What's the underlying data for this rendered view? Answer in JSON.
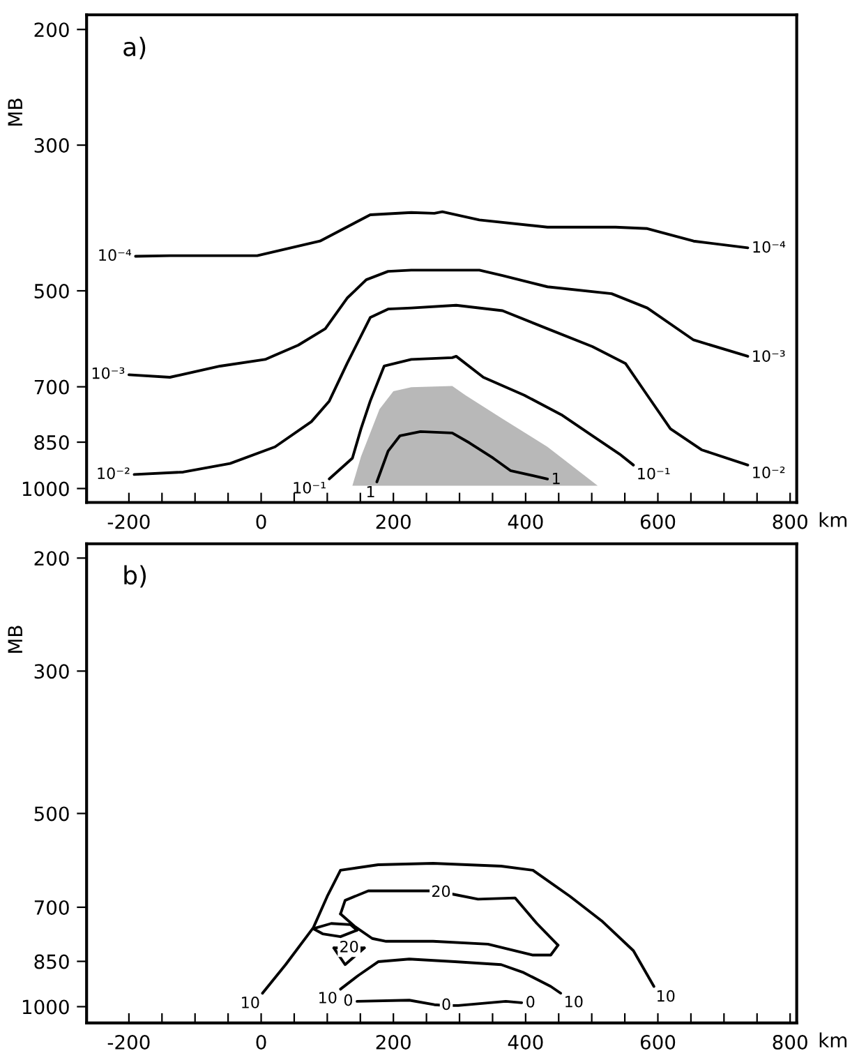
{
  "chart_data": [
    {
      "type": "line",
      "ylabel": "MB",
      "xlabel": "km",
      "log": "y",
      "xlim": [
        -264,
        810
      ],
      "ylim": [
        1050,
        190
      ],
      "yticks": [
        200,
        300,
        500,
        700,
        850,
        1000
      ],
      "xticks": [
        -200,
        {
          "value": -150,
          "label": null
        },
        {
          "value": -100,
          "label": null
        },
        {
          "value": -50,
          "label": null
        },
        0,
        {
          "value": 50,
          "label": null
        },
        {
          "value": 100,
          "label": null
        },
        {
          "value": 150,
          "label": null
        },
        200,
        {
          "value": 250,
          "label": null
        },
        {
          "value": 300,
          "label": null
        },
        {
          "value": 350,
          "label": null
        },
        400,
        {
          "value": 450,
          "label": null
        },
        {
          "value": 500,
          "label": null
        },
        {
          "value": 550,
          "label": null
        },
        600,
        {
          "value": 650,
          "label": null
        },
        {
          "value": 700,
          "label": null
        },
        {
          "value": 750,
          "label": null
        },
        800
      ],
      "series": [
        {
          "type": "area",
          "color": "#b8b8b8",
          "x": [
            138,
            151,
            179,
            200,
            227,
            289,
            309,
            365,
            433,
            509
          ],
          "values": [
            990,
            894,
            757,
            711,
            701,
            698,
            721,
            783,
            864,
            990
          ]
        },
        {
          "color": "#000000",
          "x": [
            -190,
            -138,
            -6,
            89,
            165,
            227,
            262,
            274,
            330,
            433,
            536,
            584,
            654,
            736
          ],
          "values": [
            443,
            442,
            442,
            420,
            383,
            380,
            381,
            379,
            390,
            400,
            400,
            402,
            420,
            430
          ]
        },
        {
          "color": "#000000",
          "x": [
            -200,
            -138,
            -62,
            6,
            56,
            97,
            130,
            159,
            192,
            227,
            330,
            365,
            433,
            530,
            584,
            654,
            736
          ],
          "values": [
            671,
            677,
            651,
            636,
            605,
            571,
            513,
            481,
            467,
            465,
            465,
            474,
            493,
            505,
            531,
            594,
            629
          ]
        },
        {
          "color": "#000000",
          "x": [
            -192,
            -118,
            -47,
            21,
            76,
            103,
            130,
            165,
            192,
            227,
            295,
            365,
            433,
            501,
            551,
            584,
            619,
            666,
            736
          ],
          "values": [
            952,
            944,
            916,
            864,
            791,
            736,
            645,
            549,
            533,
            531,
            526,
            536,
            571,
            608,
            645,
            721,
            811,
            873,
            921
          ]
        },
        {
          "color": "#000000",
          "x": [
            103,
            138,
            151,
            165,
            186,
            227,
            289,
            295,
            336,
            398,
            454,
            501,
            542,
            563
          ],
          "values": [
            967,
            899,
            811,
            736,
            651,
            636,
            632,
            629,
            677,
            721,
            772,
            831,
            886,
            921
          ]
        },
        {
          "color": "#000000",
          "x": [
            175,
            192,
            210,
            241,
            289,
            315,
            351,
            377,
            433
          ],
          "values": [
            977,
            877,
            831,
            819,
            823,
            852,
            899,
            939,
            967
          ]
        }
      ],
      "annotations": [
        "a)",
        {
          "text": "10⁻⁴",
          "x": -190,
          "y": 443
        },
        {
          "text": "10⁻⁴",
          "x": 736,
          "y": 430
        },
        {
          "text": "10⁻³",
          "x": -200,
          "y": 671
        },
        {
          "text": "10⁻³",
          "x": 736,
          "y": 629
        },
        {
          "text": "10⁻²",
          "x": -192,
          "y": 952
        },
        {
          "text": "10⁻²",
          "x": 736,
          "y": 921
        },
        {
          "text": "10⁻¹",
          "x": 103,
          "y": 967
        },
        {
          "text": "10⁻¹",
          "x": 563,
          "y": 921
        },
        {
          "text": "1",
          "x": 175,
          "y": 977
        },
        {
          "text": "1",
          "x": 433,
          "y": 967
        }
      ]
    },
    {
      "type": "line",
      "ylabel": "MB",
      "xlabel": "km",
      "log": "y",
      "xlim": [
        -264,
        810
      ],
      "ylim": [
        1060,
        190
      ],
      "yticks": [
        200,
        300,
        500,
        700,
        850,
        1000
      ],
      "xticks": [
        -200,
        {
          "value": -150,
          "label": null
        },
        {
          "value": -100,
          "label": null
        },
        {
          "value": -50,
          "label": null
        },
        0,
        {
          "value": 50,
          "label": null
        },
        {
          "value": 100,
          "label": null
        },
        {
          "value": 150,
          "label": null
        },
        200,
        {
          "value": 250,
          "label": null
        },
        {
          "value": 300,
          "label": null
        },
        {
          "value": 350,
          "label": null
        },
        400,
        {
          "value": 450,
          "label": null
        },
        {
          "value": 500,
          "label": null
        },
        {
          "value": 550,
          "label": null
        },
        600,
        {
          "value": 650,
          "label": null
        },
        {
          "value": 700,
          "label": null
        },
        {
          "value": 750,
          "label": null
        },
        800
      ],
      "series": [
        {
          "color": "#000000",
          "x": [
            2,
            37,
            79,
            100,
            120,
            177,
            260,
            363,
            411,
            467,
            515,
            563,
            594
          ],
          "values": [
            953,
            860,
            753,
            673,
            613,
            601,
            598,
            604,
            613,
            673,
            735,
            818,
            930
          ]
        },
        {
          "color": "#000000",
          "x": [
            120,
            127,
            162,
            255,
            272,
            290,
            328,
            384,
            417,
            449
          ],
          "values": [
            717,
            683,
            660,
            660,
            664,
            668,
            680,
            677,
            742,
            802
          ]
        },
        {
          "color": "#000000",
          "x": [
            120,
            141,
            168,
            189,
            260,
            343,
            411,
            438,
            449
          ],
          "values": [
            717,
            749,
            783,
            791,
            791,
            799,
            831,
            831,
            802
          ]
        },
        {
          "color": "#000000",
          "x": [
            79,
            106,
            135,
            145
          ],
          "values": [
            756,
            742,
            745,
            760
          ]
        },
        {
          "color": "#000000",
          "x": [
            79,
            93,
            120,
            145
          ],
          "values": [
            756,
            770,
            778,
            760
          ]
        },
        {
          "color": "#000000",
          "x": [
            110,
            127,
            156
          ],
          "values": [
            810,
            860,
            810
          ]
        },
        {
          "color": "#000000",
          "x": [
            110,
            133,
            156
          ],
          "values": [
            810,
            810,
            810
          ]
        },
        {
          "color": "#000000",
          "x": [
            120,
            147,
            177,
            224,
            293,
            363,
            397,
            438,
            453
          ],
          "values": [
            939,
            894,
            851,
            843,
            851,
            860,
            885,
            930,
            953
          ]
        },
        {
          "color": "#000000",
          "x": [
            145,
            224,
            262,
            280,
            298,
            370,
            394
          ],
          "values": [
            981,
            977,
            993,
            996,
            996,
            981,
            986
          ]
        }
      ],
      "annotations": [
        "b)",
        {
          "text": "10",
          "x": 2,
          "y": 953
        },
        {
          "text": "10",
          "x": 120,
          "y": 939
        },
        {
          "text": "10",
          "x": 453,
          "y": 953
        },
        {
          "text": "10",
          "x": 594,
          "y": 930
        },
        {
          "text": "20",
          "x": 272,
          "y": 664
        },
        {
          "text": "20",
          "x": 133,
          "y": 810
        },
        {
          "text": "0",
          "x": 145,
          "y": 981
        },
        {
          "text": "0",
          "x": 280,
          "y": 996
        },
        {
          "text": "0",
          "x": 394,
          "y": 986
        }
      ]
    }
  ]
}
